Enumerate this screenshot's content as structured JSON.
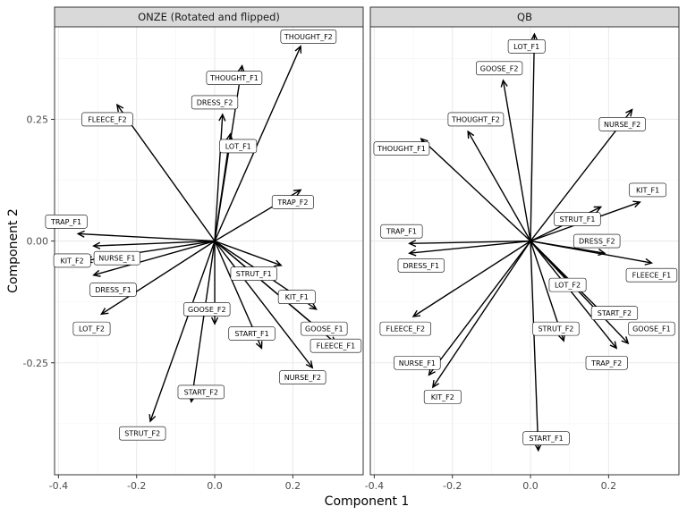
{
  "chart_data": {
    "type": "biplot",
    "xlabel": "Component 1",
    "ylabel": "Component 2",
    "xlim": [
      -0.41,
      0.38
    ],
    "ylim": [
      -0.48,
      0.44
    ],
    "x_ticks": [
      -0.4,
      -0.2,
      0.0,
      0.2
    ],
    "x_tick_labels": [
      "-0.4",
      "-0.2",
      "0.0",
      "0.2"
    ],
    "y_ticks": [
      -0.25,
      0.0,
      0.25
    ],
    "y_tick_labels": [
      "-0.25",
      "0.00",
      "0.25"
    ],
    "grid": true,
    "panels": [
      {
        "title": "ONZE (Rotated and flipped)",
        "vectors": [
          {
            "name": "THOUGHT_F2",
            "x": 0.22,
            "y": 0.4,
            "lx": 0.24,
            "ly": 0.42
          },
          {
            "name": "THOUGHT_F1",
            "x": 0.07,
            "y": 0.36,
            "lx": 0.05,
            "ly": 0.335
          },
          {
            "name": "DRESS_F2",
            "x": 0.02,
            "y": 0.26,
            "lx": 0.0,
            "ly": 0.285
          },
          {
            "name": "LOT_F1",
            "x": 0.04,
            "y": 0.22,
            "lx": 0.06,
            "ly": 0.195
          },
          {
            "name": "FLEECE_F2",
            "x": -0.25,
            "y": 0.28,
            "lx": -0.275,
            "ly": 0.25
          },
          {
            "name": "TRAP_F2",
            "x": 0.22,
            "y": 0.105,
            "lx": 0.2,
            "ly": 0.08
          },
          {
            "name": "TRAP_F1",
            "x": -0.35,
            "y": 0.015,
            "lx": -0.38,
            "ly": 0.04
          },
          {
            "name": "KIT_F2",
            "x": -0.33,
            "y": -0.04,
            "lx": -0.365,
            "ly": -0.04
          },
          {
            "name": "NURSE_F1",
            "x": -0.31,
            "y": -0.01,
            "lx": -0.25,
            "ly": -0.035
          },
          {
            "name": "DRESS_F1",
            "x": -0.31,
            "y": -0.07,
            "lx": -0.26,
            "ly": -0.1
          },
          {
            "name": "LOT_F2",
            "x": -0.29,
            "y": -0.15,
            "lx": -0.315,
            "ly": -0.18
          },
          {
            "name": "STRUT_F1",
            "x": 0.17,
            "y": -0.05,
            "lx": 0.1,
            "ly": -0.067
          },
          {
            "name": "KIT_F1",
            "x": 0.26,
            "y": -0.14,
            "lx": 0.21,
            "ly": -0.115
          },
          {
            "name": "GOOSE_F1",
            "x": 0.28,
            "y": -0.19,
            "lx": 0.28,
            "ly": -0.18
          },
          {
            "name": "FLEECE_F1",
            "x": 0.31,
            "y": -0.21,
            "lx": 0.31,
            "ly": -0.215
          },
          {
            "name": "START_F1",
            "x": 0.12,
            "y": -0.22,
            "lx": 0.095,
            "ly": -0.19
          },
          {
            "name": "NURSE_F2",
            "x": 0.25,
            "y": -0.26,
            "lx": 0.225,
            "ly": -0.28
          },
          {
            "name": "GOOSE_F2",
            "x": 0.0,
            "y": -0.17,
            "lx": -0.02,
            "ly": -0.14
          },
          {
            "name": "START_F2",
            "x": -0.06,
            "y": -0.33,
            "lx": -0.035,
            "ly": -0.31
          },
          {
            "name": "STRUT_F2",
            "x": -0.165,
            "y": -0.37,
            "lx": -0.185,
            "ly": -0.395
          }
        ]
      },
      {
        "title": "QB",
        "vectors": [
          {
            "name": "LOT_F1",
            "x": 0.01,
            "y": 0.425,
            "lx": -0.01,
            "ly": 0.4
          },
          {
            "name": "GOOSE_F2",
            "x": -0.07,
            "y": 0.33,
            "lx": -0.08,
            "ly": 0.355
          },
          {
            "name": "THOUGHT_F2",
            "x": -0.16,
            "y": 0.225,
            "lx": -0.14,
            "ly": 0.25
          },
          {
            "name": "THOUGHT_F1",
            "x": -0.28,
            "y": 0.21,
            "lx": -0.33,
            "ly": 0.19
          },
          {
            "name": "NURSE_F2",
            "x": 0.26,
            "y": 0.27,
            "lx": 0.235,
            "ly": 0.24
          },
          {
            "name": "KIT_F1",
            "x": 0.28,
            "y": 0.08,
            "lx": 0.3,
            "ly": 0.105
          },
          {
            "name": "STRUT_F1",
            "x": 0.18,
            "y": 0.07,
            "lx": 0.12,
            "ly": 0.045
          },
          {
            "name": "TRAP_F1",
            "x": -0.31,
            "y": -0.005,
            "lx": -0.33,
            "ly": 0.02
          },
          {
            "name": "DRESS_F2",
            "x": 0.19,
            "y": -0.025,
            "lx": 0.17,
            "ly": 0.0
          },
          {
            "name": "DRESS_F1",
            "x": -0.31,
            "y": -0.025,
            "lx": -0.28,
            "ly": -0.05
          },
          {
            "name": "FLEECE_F1",
            "x": 0.31,
            "y": -0.045,
            "lx": 0.31,
            "ly": -0.07
          },
          {
            "name": "LOT_F2",
            "x": 0.11,
            "y": -0.095,
            "lx": 0.095,
            "ly": -0.09
          },
          {
            "name": "START_F2",
            "x": 0.2,
            "y": -0.16,
            "lx": 0.215,
            "ly": -0.148
          },
          {
            "name": "GOOSE_F1",
            "x": 0.25,
            "y": -0.21,
            "lx": 0.31,
            "ly": -0.18
          },
          {
            "name": "TRAP_F2",
            "x": 0.22,
            "y": -0.22,
            "lx": 0.195,
            "ly": -0.25
          },
          {
            "name": "STRUT_F2",
            "x": 0.085,
            "y": -0.205,
            "lx": 0.065,
            "ly": -0.18
          },
          {
            "name": "FLEECE_F2",
            "x": -0.3,
            "y": -0.155,
            "lx": -0.32,
            "ly": -0.18
          },
          {
            "name": "NURSE_F1",
            "x": -0.26,
            "y": -0.275,
            "lx": -0.29,
            "ly": -0.25
          },
          {
            "name": "KIT_F2",
            "x": -0.25,
            "y": -0.3,
            "lx": -0.225,
            "ly": -0.32
          },
          {
            "name": "START_F1",
            "x": 0.02,
            "y": -0.43,
            "lx": 0.04,
            "ly": -0.405
          }
        ]
      }
    ]
  }
}
